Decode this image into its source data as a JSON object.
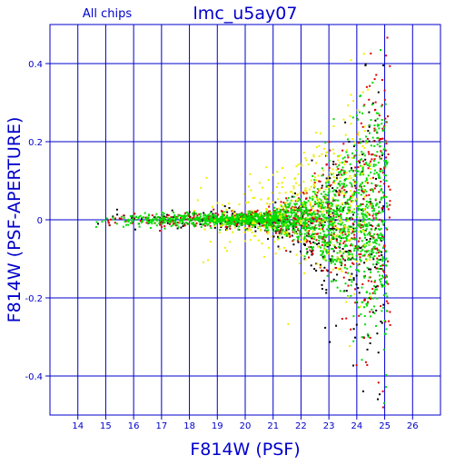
{
  "chart_data": {
    "type": "scatter",
    "subtitle": "All chips",
    "title": "lmc_u5ay07",
    "xlabel": "F814W (PSF)",
    "ylabel": "F814W (PSF-APERTURE)",
    "xlim": [
      13,
      27
    ],
    "ylim": [
      -0.5,
      0.5
    ],
    "x_ticks": [
      14,
      15,
      16,
      17,
      18,
      19,
      20,
      21,
      22,
      23,
      24,
      25,
      26
    ],
    "y_ticks": [
      -0.4,
      -0.2,
      0,
      0.2,
      0.4
    ],
    "x_tick_labels": [
      "14",
      "15",
      "16",
      "17",
      "18",
      "19",
      "20",
      "21",
      "22",
      "23",
      "24",
      "25",
      "26"
    ],
    "y_tick_labels": [
      "-0.4",
      "-0.2",
      "0",
      "0.2",
      "0.4"
    ],
    "grid": true,
    "colors": {
      "axis": "#0000cc",
      "text": "#0000cc",
      "series": [
        "#000000",
        "#dd0000",
        "#00dd00",
        "#eeee00"
      ]
    },
    "series": [
      {
        "color": "#000000",
        "count": 420,
        "xmin": 14.5,
        "xmax": 25.0,
        "yfloor": 0.008,
        "yspread_bright": 0.012,
        "yspread_faint": 0.25,
        "ybias": -0.08
      },
      {
        "color": "#dd0000",
        "count": 700,
        "xmin": 14.3,
        "xmax": 25.2,
        "yfloor": 0.007,
        "yspread_bright": 0.01,
        "yspread_faint": 0.22,
        "ybias": 0.0
      },
      {
        "color": "#00dd00",
        "count": 1800,
        "xmin": 14.5,
        "xmax": 25.1,
        "yfloor": 0.006,
        "yspread_bright": 0.008,
        "yspread_faint": 0.17,
        "ybias": 0.0
      },
      {
        "color": "#eeee00",
        "count": 380,
        "xmin": 17.5,
        "xmax": 24.5,
        "yfloor": 0.02,
        "yspread_bright": 0.05,
        "yspread_faint": 0.2,
        "ybias": 0.2
      }
    ]
  }
}
